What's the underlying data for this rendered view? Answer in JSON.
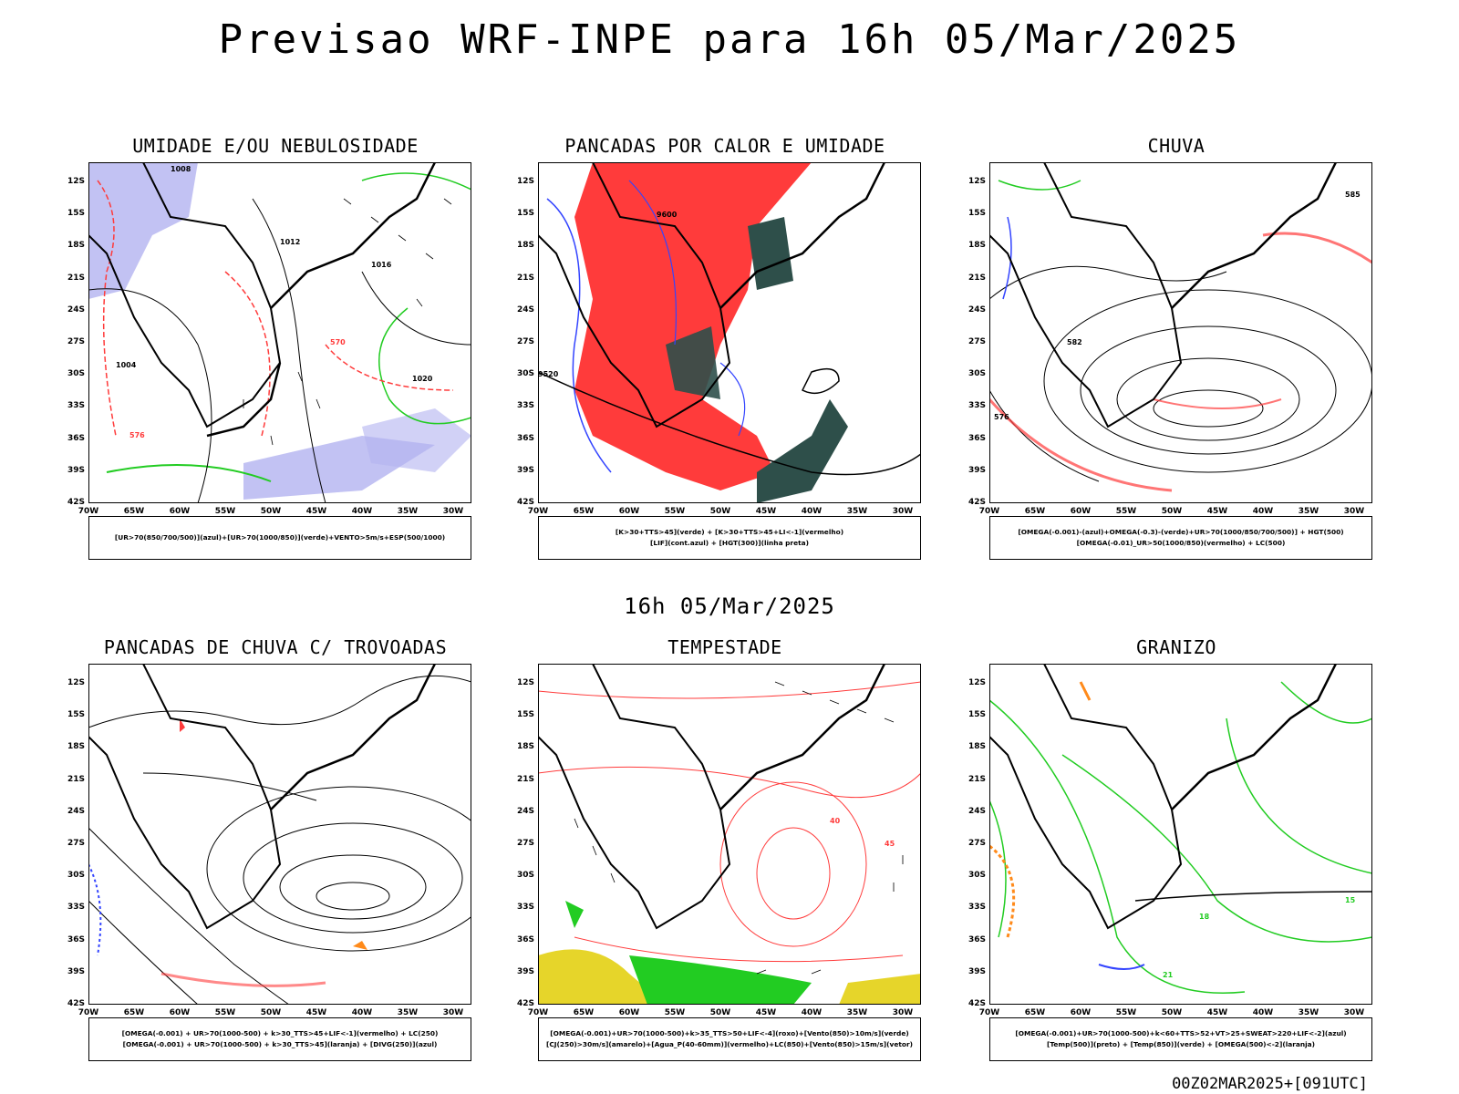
{
  "header": {
    "main_title": "Previsao WRF-INPE  para 16h 05/Mar/2025",
    "mid_title": "16h 05/Mar/2025",
    "footer": "00Z02MAR2025+[091UTC]"
  },
  "axes": {
    "lat_labels": [
      "12S",
      "15S",
      "18S",
      "21S",
      "24S",
      "27S",
      "30S",
      "33S",
      "36S",
      "39S",
      "42S"
    ],
    "lon_labels": [
      "70W",
      "65W",
      "60W",
      "55W",
      "50W",
      "45W",
      "40W",
      "35W",
      "30W"
    ]
  },
  "panels": [
    {
      "title": "UMIDADE E/OU NEBULOSIDADE",
      "legend": [
        "[UR>70(850/700/500)](azul)+[UR>70(1000/850)](verde)+VENTO>5m/s+ESP(500/1000)"
      ],
      "contour_labels": [
        "1008",
        "1012",
        "1016",
        "1020",
        "1004",
        "570",
        "576"
      ]
    },
    {
      "title": "PANCADAS POR CALOR E UMIDADE",
      "legend": [
        "[K>30+TTS>45](verde) + [K>30+TTS>45+LI<-1](vermelho)",
        "[LIF](cont.azul) + [HGT(300)](linha preta)"
      ],
      "contour_labels": [
        "9600",
        "9520"
      ]
    },
    {
      "title": "CHUVA",
      "legend": [
        "[OMEGA(-0.001)-(azul)+OMEGA(-0.3)-(verde)+UR>70(1000/850/700/500)] + HGT(500)",
        "[OMEGA(-0.01)_UR>50(1000/850)(vermelho) + LC(500)"
      ],
      "contour_labels": [
        "585",
        "582",
        "576"
      ]
    },
    {
      "title": "PANCADAS DE CHUVA C/ TROVOADAS",
      "legend": [
        "[OMEGA(-0.001) + UR>70(1000-500) + k>30_TTS>45+LIF<-1](vermelho) + LC(250)",
        "[OMEGA(-0.001) + UR>70(1000-500) + k>30_TTS>45](laranja) + [DIVG(250)](azul)"
      ],
      "contour_labels": []
    },
    {
      "title": "TEMPESTADE",
      "legend": [
        "[OMEGA(-0.001)+UR>70(1000-500)+k>35_TTS>50+LIF<-4](roxo)+[Vento(850)>10m/s](verde)",
        "[CJ(250)>30m/s](amarelo)+[Agua_P(40-60mm)](vermelho)+LC(850)+[Vento(850)>15m/s](vetor)"
      ],
      "contour_labels": [
        "40",
        "45"
      ]
    },
    {
      "title": "GRANIZO",
      "legend": [
        "[OMEGA(-0.001)+UR>70(1000-500)+k<60+TTS>52+VT>25+SWEAT>220+LIF<-2](azul)",
        "[Temp(500)](preto) + [Temp(850)](verde) + [OMEGA(500)<-2](laranja)"
      ],
      "contour_labels": [
        "15",
        "18",
        "21"
      ]
    }
  ],
  "colors": {
    "coast": "#000000",
    "red": "#ff3b3b",
    "green": "#22cc22",
    "blue": "#3344ff",
    "lavender": "#b3b3f0",
    "teal": "#2e4f4a",
    "yellow": "#e6d52a",
    "orange": "#ff8a1a"
  }
}
